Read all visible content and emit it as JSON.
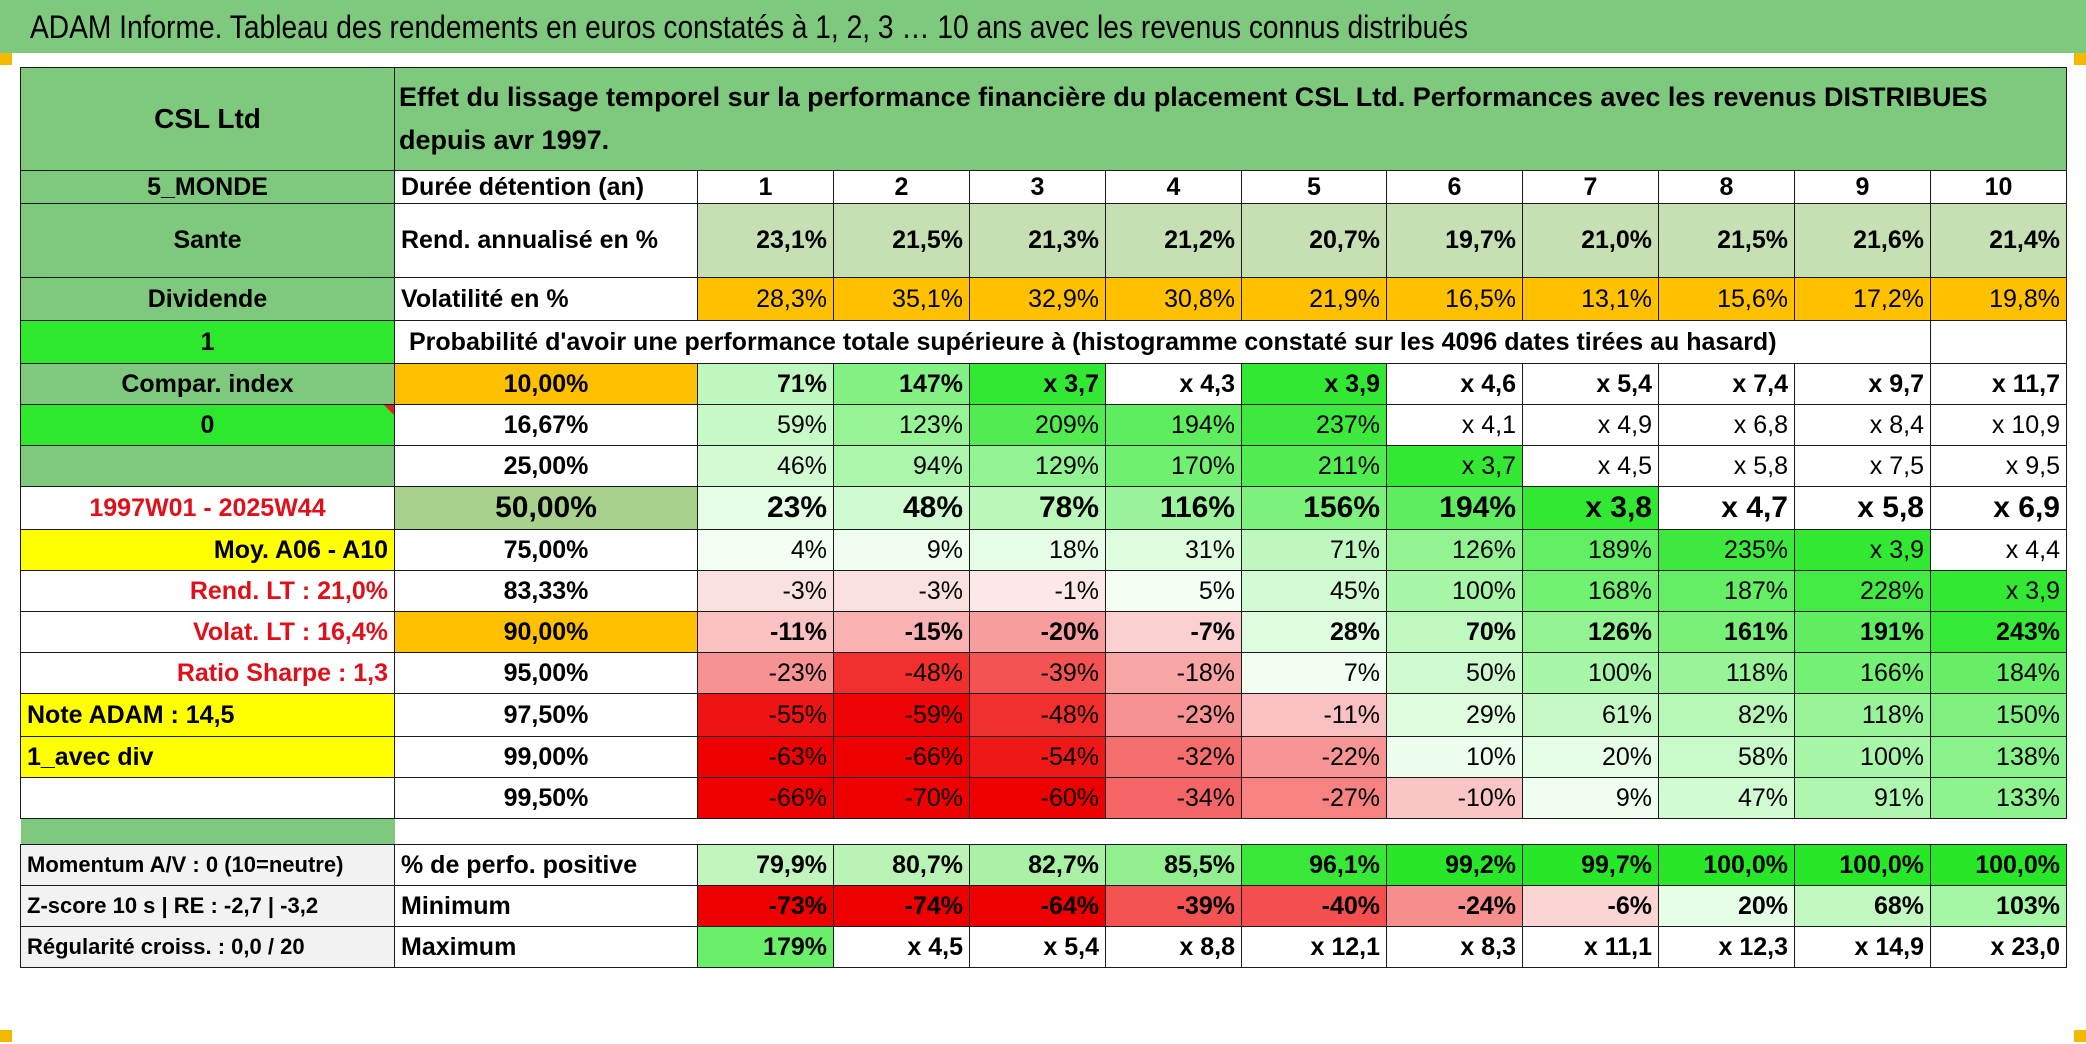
{
  "title": "ADAM Informe. Tableau des rendements en euros constatés à 1, 2, 3 … 10 ans avec les revenus connus distribués",
  "colors": {
    "header_green": "#7fc97f",
    "bright_green": "#2ee82e",
    "orange": "#ffc000",
    "yellow": "#ffff00",
    "red_text": "#e0101a",
    "light_green": "#c6e0b4"
  },
  "side": {
    "name": "CSL Ltd",
    "zone": "5_MONDE",
    "sector": "Sante",
    "type": "Dividende",
    "flag1": "1",
    "compar": "Compar. index",
    "flag2": "0",
    "period": "1997W01 - 2025W44",
    "moy": "Moy. A06 - A10",
    "rend_lt": "Rend. LT :   21,0%",
    "volat_lt": "Volat. LT :   16,4%",
    "sharpe": "Ratio Sharpe :    1,3",
    "note": "Note ADAM : 14,5",
    "div_mode": "1_avec div",
    "momentum": "Momentum A/V : 0 (10=neutre)",
    "zscore": "Z-score 10 s | RE : -2,7 | -3,2",
    "regularite": "Régularité croiss. : 0,0 / 20"
  },
  "header_text": "Effet du lissage temporel sur la performance financière du placement CSL Ltd. Performances avec les revenus DISTRIBUES depuis avr 1997.",
  "labels": {
    "duree": "Durée détention (an)",
    "rend": "Rend. annualisé en %",
    "vol": "Volatilité en %",
    "proba": "Probabilité d'avoir une performance totale supérieure à (histogramme constaté sur les 4096 dates tirées au hasard)",
    "pos": "% de perfo. positive",
    "min": "Minimum",
    "max": "Maximum"
  },
  "years": [
    "1",
    "2",
    "3",
    "4",
    "5",
    "6",
    "7",
    "8",
    "9",
    "10"
  ],
  "rend": [
    "23,1%",
    "21,5%",
    "21,3%",
    "21,2%",
    "20,7%",
    "19,7%",
    "21,0%",
    "21,5%",
    "21,6%",
    "21,4%"
  ],
  "vol": [
    "28,3%",
    "35,1%",
    "32,9%",
    "30,8%",
    "21,9%",
    "16,5%",
    "13,1%",
    "15,6%",
    "17,2%",
    "19,8%"
  ],
  "quantiles": [
    {
      "p": "10,00%",
      "vals": [
        "71%",
        "147%",
        "x 3,7",
        "x 4,3",
        "x 3,9",
        "x 4,6",
        "x 5,4",
        "x 7,4",
        "x 9,7",
        "x 11,7"
      ]
    },
    {
      "p": "16,67%",
      "vals": [
        "59%",
        "123%",
        "209%",
        "194%",
        "237%",
        "x 4,1",
        "x 4,9",
        "x 6,8",
        "x 8,4",
        "x 10,9"
      ]
    },
    {
      "p": "25,00%",
      "vals": [
        "46%",
        "94%",
        "129%",
        "170%",
        "211%",
        "x 3,7",
        "x 4,5",
        "x 5,8",
        "x 7,5",
        "x 9,5"
      ]
    },
    {
      "p": "50,00%",
      "vals": [
        "23%",
        "48%",
        "78%",
        "116%",
        "156%",
        "194%",
        "x 3,8",
        "x 4,7",
        "x 5,8",
        "x 6,9"
      ]
    },
    {
      "p": "75,00%",
      "vals": [
        "4%",
        "9%",
        "18%",
        "31%",
        "71%",
        "126%",
        "189%",
        "235%",
        "x 3,9",
        "x 4,4"
      ]
    },
    {
      "p": "83,33%",
      "vals": [
        "-3%",
        "-3%",
        "-1%",
        "5%",
        "45%",
        "100%",
        "168%",
        "187%",
        "228%",
        "x 3,9"
      ]
    },
    {
      "p": "90,00%",
      "vals": [
        "-11%",
        "-15%",
        "-20%",
        "-7%",
        "28%",
        "70%",
        "126%",
        "161%",
        "191%",
        "243%"
      ]
    },
    {
      "p": "95,00%",
      "vals": [
        "-23%",
        "-48%",
        "-39%",
        "-18%",
        "7%",
        "50%",
        "100%",
        "118%",
        "166%",
        "184%"
      ]
    },
    {
      "p": "97,50%",
      "vals": [
        "-55%",
        "-59%",
        "-48%",
        "-23%",
        "-11%",
        "29%",
        "61%",
        "82%",
        "118%",
        "150%"
      ]
    },
    {
      "p": "99,00%",
      "vals": [
        "-63%",
        "-66%",
        "-54%",
        "-32%",
        "-22%",
        "10%",
        "20%",
        "58%",
        "100%",
        "138%"
      ]
    },
    {
      "p": "99,50%",
      "vals": [
        "-66%",
        "-70%",
        "-60%",
        "-34%",
        "-27%",
        "-10%",
        "9%",
        "47%",
        "91%",
        "133%"
      ]
    }
  ],
  "pos": [
    "79,9%",
    "80,7%",
    "82,7%",
    "85,5%",
    "96,1%",
    "99,2%",
    "99,7%",
    "100,0%",
    "100,0%",
    "100,0%"
  ],
  "min": [
    "-73%",
    "-74%",
    "-64%",
    "-39%",
    "-40%",
    "-24%",
    "-6%",
    "20%",
    "68%",
    "103%"
  ],
  "max": [
    "179%",
    "x 4,5",
    "x 5,4",
    "x 8,8",
    "x 12,1",
    "x 8,3",
    "x 11,1",
    "x 12,3",
    "x 14,9",
    "x 23,0"
  ]
}
